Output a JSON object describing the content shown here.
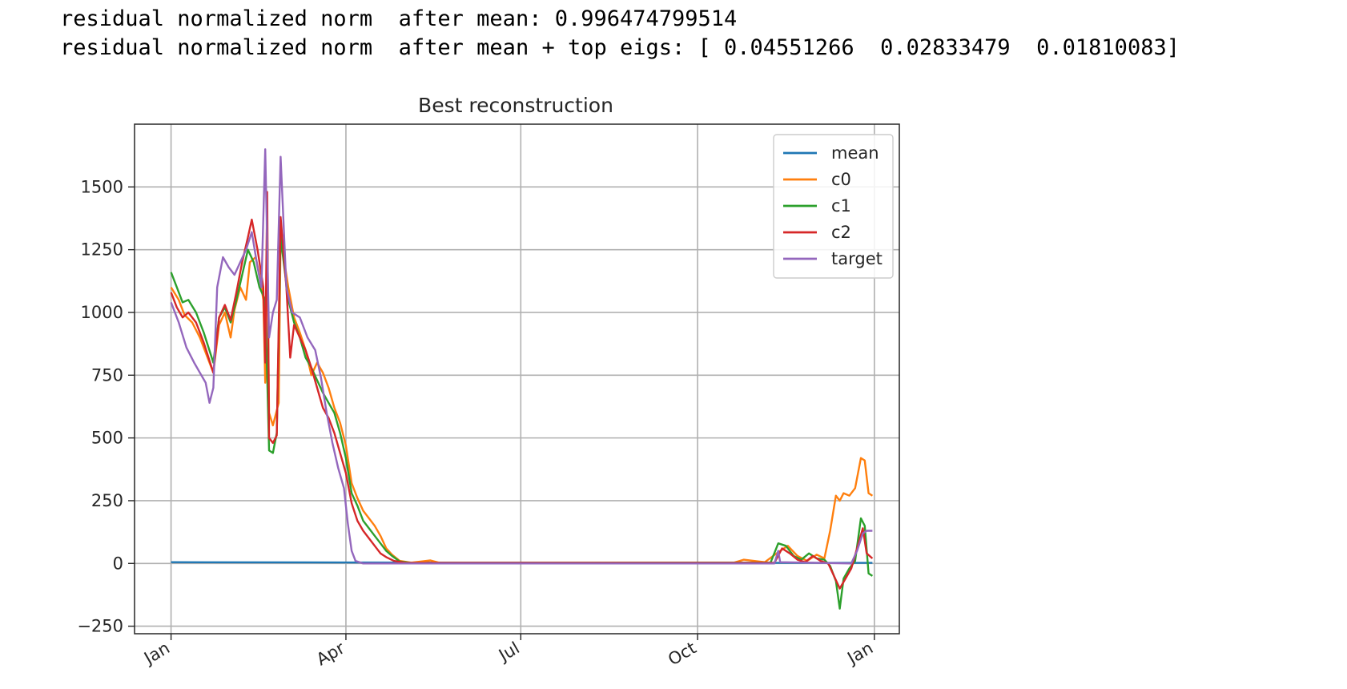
{
  "output": {
    "line1": "residual normalized norm  after mean: 0.996474799514",
    "line2": "residual normalized norm  after mean + top eigs: [ 0.04551266  0.02833479  0.01810083]"
  },
  "chart_data": {
    "type": "line",
    "title": "Best reconstruction",
    "xlabel": "",
    "ylabel": "",
    "x_ticks": [
      "Jan",
      "Apr",
      "Jul",
      "Oct",
      "Jan"
    ],
    "x_tick_dates": [
      "2020-01-01",
      "2020-04-01",
      "2020-07-01",
      "2020-10-01",
      "2021-01-01"
    ],
    "xlim": [
      "2019-12-13",
      "2021-01-14"
    ],
    "y_ticks": [
      -250,
      0,
      250,
      500,
      750,
      1000,
      1250,
      1500
    ],
    "ylim": [
      -280,
      1750
    ],
    "grid": true,
    "legend_position": "upper right",
    "series": [
      {
        "name": "mean",
        "color": "#1f77b4",
        "points": [
          [
            "2020-01-01",
            5
          ],
          [
            "2020-06-01",
            3
          ],
          [
            "2020-12-31",
            2
          ]
        ]
      },
      {
        "name": "c0",
        "color": "#ff7f0e",
        "points": [
          [
            "2020-01-01",
            1100
          ],
          [
            "2020-01-05",
            1050
          ],
          [
            "2020-01-08",
            990
          ],
          [
            "2020-01-12",
            960
          ],
          [
            "2020-01-16",
            900
          ],
          [
            "2020-01-20",
            820
          ],
          [
            "2020-01-23",
            760
          ],
          [
            "2020-01-26",
            950
          ],
          [
            "2020-01-29",
            1000
          ],
          [
            "2020-02-01",
            900
          ],
          [
            "2020-02-03",
            1010
          ],
          [
            "2020-02-06",
            1100
          ],
          [
            "2020-02-09",
            1050
          ],
          [
            "2020-02-11",
            1200
          ],
          [
            "2020-02-14",
            1220
          ],
          [
            "2020-02-16",
            1150
          ],
          [
            "2020-02-18",
            1050
          ],
          [
            "2020-02-19",
            720
          ],
          [
            "2020-02-20",
            1350
          ],
          [
            "2020-02-21",
            600
          ],
          [
            "2020-02-23",
            550
          ],
          [
            "2020-02-26",
            640
          ],
          [
            "2020-02-27",
            1300
          ],
          [
            "2020-03-02",
            1100
          ],
          [
            "2020-03-05",
            980
          ],
          [
            "2020-03-08",
            920
          ],
          [
            "2020-03-11",
            850
          ],
          [
            "2020-03-14",
            750
          ],
          [
            "2020-03-17",
            800
          ],
          [
            "2020-03-20",
            760
          ],
          [
            "2020-03-23",
            700
          ],
          [
            "2020-03-26",
            620
          ],
          [
            "2020-03-29",
            560
          ],
          [
            "2020-04-01",
            470
          ],
          [
            "2020-04-04",
            320
          ],
          [
            "2020-04-07",
            260
          ],
          [
            "2020-04-10",
            210
          ],
          [
            "2020-04-13",
            180
          ],
          [
            "2020-04-16",
            150
          ],
          [
            "2020-04-19",
            110
          ],
          [
            "2020-04-22",
            60
          ],
          [
            "2020-04-25",
            35
          ],
          [
            "2020-04-29",
            10
          ],
          [
            "2020-05-05",
            3
          ],
          [
            "2020-05-15",
            12
          ],
          [
            "2020-05-20",
            2
          ],
          [
            "2020-10-20",
            3
          ],
          [
            "2020-10-25",
            15
          ],
          [
            "2020-11-05",
            5
          ],
          [
            "2020-11-12",
            45
          ],
          [
            "2020-11-17",
            70
          ],
          [
            "2020-11-22",
            30
          ],
          [
            "2020-11-27",
            10
          ],
          [
            "2020-12-02",
            35
          ],
          [
            "2020-12-06",
            20
          ],
          [
            "2020-12-09",
            130
          ],
          [
            "2020-12-12",
            270
          ],
          [
            "2020-12-14",
            250
          ],
          [
            "2020-12-16",
            280
          ],
          [
            "2020-12-19",
            270
          ],
          [
            "2020-12-22",
            300
          ],
          [
            "2020-12-25",
            420
          ],
          [
            "2020-12-27",
            410
          ],
          [
            "2020-12-29",
            280
          ],
          [
            "2020-12-31",
            270
          ]
        ]
      },
      {
        "name": "c1",
        "color": "#2ca02c",
        "points": [
          [
            "2020-01-01",
            1160
          ],
          [
            "2020-01-04",
            1100
          ],
          [
            "2020-01-07",
            1040
          ],
          [
            "2020-01-10",
            1050
          ],
          [
            "2020-01-14",
            1000
          ],
          [
            "2020-01-18",
            920
          ],
          [
            "2020-01-23",
            800
          ],
          [
            "2020-01-26",
            980
          ],
          [
            "2020-01-29",
            1020
          ],
          [
            "2020-02-01",
            960
          ],
          [
            "2020-02-04",
            1050
          ],
          [
            "2020-02-07",
            1150
          ],
          [
            "2020-02-10",
            1250
          ],
          [
            "2020-02-13",
            1200
          ],
          [
            "2020-02-16",
            1100
          ],
          [
            "2020-02-19",
            1050
          ],
          [
            "2020-02-21",
            450
          ],
          [
            "2020-02-23",
            440
          ],
          [
            "2020-02-25",
            520
          ],
          [
            "2020-02-27",
            1300
          ],
          [
            "2020-03-02",
            1050
          ],
          [
            "2020-03-05",
            960
          ],
          [
            "2020-03-08",
            900
          ],
          [
            "2020-03-11",
            820
          ],
          [
            "2020-03-14",
            780
          ],
          [
            "2020-03-17",
            730
          ],
          [
            "2020-03-20",
            680
          ],
          [
            "2020-03-23",
            640
          ],
          [
            "2020-03-26",
            600
          ],
          [
            "2020-03-29",
            520
          ],
          [
            "2020-04-01",
            420
          ],
          [
            "2020-04-04",
            280
          ],
          [
            "2020-04-07",
            230
          ],
          [
            "2020-04-10",
            170
          ],
          [
            "2020-04-13",
            140
          ],
          [
            "2020-04-16",
            110
          ],
          [
            "2020-04-19",
            80
          ],
          [
            "2020-04-22",
            50
          ],
          [
            "2020-04-25",
            30
          ],
          [
            "2020-04-29",
            8
          ],
          [
            "2020-05-05",
            2
          ],
          [
            "2020-11-08",
            3
          ],
          [
            "2020-11-12",
            80
          ],
          [
            "2020-11-16",
            70
          ],
          [
            "2020-11-20",
            30
          ],
          [
            "2020-11-24",
            15
          ],
          [
            "2020-11-28",
            40
          ],
          [
            "2020-12-02",
            20
          ],
          [
            "2020-12-06",
            15
          ],
          [
            "2020-12-09",
            -10
          ],
          [
            "2020-12-12",
            -70
          ],
          [
            "2020-12-14",
            -180
          ],
          [
            "2020-12-16",
            -60
          ],
          [
            "2020-12-19",
            -20
          ],
          [
            "2020-12-22",
            10
          ],
          [
            "2020-12-25",
            180
          ],
          [
            "2020-12-27",
            150
          ],
          [
            "2020-12-29",
            -40
          ],
          [
            "2020-12-31",
            -50
          ]
        ]
      },
      {
        "name": "c2",
        "color": "#d62728",
        "points": [
          [
            "2020-01-01",
            1080
          ],
          [
            "2020-01-04",
            1020
          ],
          [
            "2020-01-07",
            980
          ],
          [
            "2020-01-10",
            1000
          ],
          [
            "2020-01-14",
            960
          ],
          [
            "2020-01-18",
            880
          ],
          [
            "2020-01-23",
            760
          ],
          [
            "2020-01-26",
            980
          ],
          [
            "2020-01-29",
            1030
          ],
          [
            "2020-02-01",
            970
          ],
          [
            "2020-02-04",
            1080
          ],
          [
            "2020-02-07",
            1200
          ],
          [
            "2020-02-10",
            1300
          ],
          [
            "2020-02-12",
            1370
          ],
          [
            "2020-02-15",
            1250
          ],
          [
            "2020-02-18",
            1100
          ],
          [
            "2020-02-19",
            800
          ],
          [
            "2020-02-20",
            1480
          ],
          [
            "2020-02-21",
            500
          ],
          [
            "2020-02-23",
            480
          ],
          [
            "2020-02-25",
            510
          ],
          [
            "2020-02-27",
            1380
          ],
          [
            "2020-03-01",
            1100
          ],
          [
            "2020-03-03",
            820
          ],
          [
            "2020-03-05",
            950
          ],
          [
            "2020-03-08",
            900
          ],
          [
            "2020-03-11",
            850
          ],
          [
            "2020-03-14",
            780
          ],
          [
            "2020-03-17",
            700
          ],
          [
            "2020-03-20",
            620
          ],
          [
            "2020-03-23",
            580
          ],
          [
            "2020-03-26",
            520
          ],
          [
            "2020-03-29",
            440
          ],
          [
            "2020-04-01",
            360
          ],
          [
            "2020-04-04",
            240
          ],
          [
            "2020-04-07",
            170
          ],
          [
            "2020-04-10",
            130
          ],
          [
            "2020-04-13",
            100
          ],
          [
            "2020-04-16",
            70
          ],
          [
            "2020-04-19",
            40
          ],
          [
            "2020-04-22",
            25
          ],
          [
            "2020-04-26",
            10
          ],
          [
            "2020-05-02",
            2
          ],
          [
            "2020-11-10",
            2
          ],
          [
            "2020-11-14",
            60
          ],
          [
            "2020-11-18",
            40
          ],
          [
            "2020-11-22",
            15
          ],
          [
            "2020-11-26",
            5
          ],
          [
            "2020-11-30",
            30
          ],
          [
            "2020-12-04",
            10
          ],
          [
            "2020-12-08",
            0
          ],
          [
            "2020-12-11",
            -50
          ],
          [
            "2020-12-14",
            -100
          ],
          [
            "2020-12-17",
            -60
          ],
          [
            "2020-12-20",
            -20
          ],
          [
            "2020-12-23",
            60
          ],
          [
            "2020-12-26",
            140
          ],
          [
            "2020-12-28",
            40
          ],
          [
            "2020-12-31",
            20
          ]
        ]
      },
      {
        "name": "target",
        "color": "#9467bd",
        "points": [
          [
            "2020-01-01",
            1040
          ],
          [
            "2020-01-05",
            960
          ],
          [
            "2020-01-09",
            860
          ],
          [
            "2020-01-13",
            800
          ],
          [
            "2020-01-16",
            760
          ],
          [
            "2020-01-19",
            720
          ],
          [
            "2020-01-21",
            640
          ],
          [
            "2020-01-23",
            700
          ],
          [
            "2020-01-25",
            1100
          ],
          [
            "2020-01-28",
            1220
          ],
          [
            "2020-01-31",
            1180
          ],
          [
            "2020-02-03",
            1150
          ],
          [
            "2020-02-06",
            1200
          ],
          [
            "2020-02-09",
            1250
          ],
          [
            "2020-02-12",
            1320
          ],
          [
            "2020-02-15",
            1180
          ],
          [
            "2020-02-17",
            1100
          ],
          [
            "2020-02-19",
            1650
          ],
          [
            "2020-02-21",
            900
          ],
          [
            "2020-02-23",
            1000
          ],
          [
            "2020-02-25",
            1050
          ],
          [
            "2020-02-27",
            1620
          ],
          [
            "2020-03-01",
            1100
          ],
          [
            "2020-03-04",
            1000
          ],
          [
            "2020-03-08",
            980
          ],
          [
            "2020-03-12",
            900
          ],
          [
            "2020-03-16",
            850
          ],
          [
            "2020-03-19",
            740
          ],
          [
            "2020-03-22",
            600
          ],
          [
            "2020-03-25",
            480
          ],
          [
            "2020-03-28",
            380
          ],
          [
            "2020-03-31",
            300
          ],
          [
            "2020-04-02",
            160
          ],
          [
            "2020-04-04",
            50
          ],
          [
            "2020-04-06",
            10
          ],
          [
            "2020-04-10",
            0
          ],
          [
            "2020-11-10",
            0
          ],
          [
            "2020-11-12",
            50
          ],
          [
            "2020-11-13",
            5
          ],
          [
            "2020-12-20",
            0
          ],
          [
            "2020-12-23",
            50
          ],
          [
            "2020-12-26",
            120
          ],
          [
            "2020-12-28",
            130
          ],
          [
            "2020-12-31",
            130
          ]
        ]
      }
    ]
  }
}
